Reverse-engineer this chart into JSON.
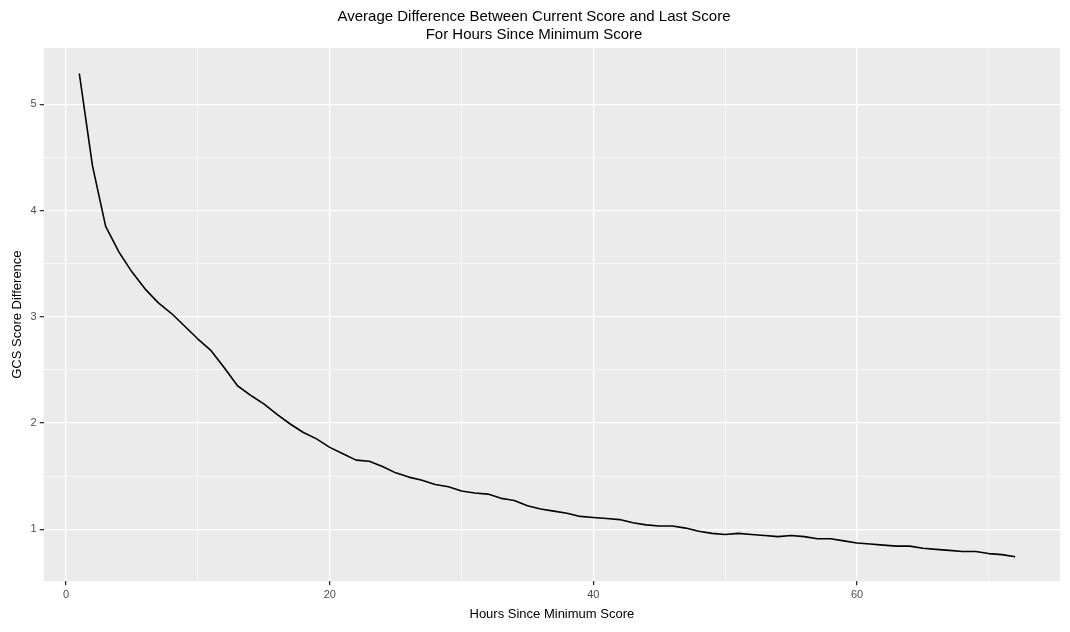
{
  "chart_data": {
    "type": "line",
    "title": "Average Difference Between Current Score and Last Score",
    "subtitle": "For Hours Since Minimum Score",
    "xlabel": "Hours Since Minimum Score",
    "ylabel": "GCS Score Difference",
    "x": [
      1,
      2,
      3,
      4,
      5,
      6,
      7,
      8,
      9,
      10,
      11,
      12,
      13,
      14,
      15,
      16,
      17,
      18,
      19,
      20,
      21,
      22,
      23,
      24,
      25,
      26,
      27,
      28,
      29,
      30,
      31,
      32,
      33,
      34,
      35,
      36,
      37,
      38,
      39,
      40,
      41,
      42,
      43,
      44,
      45,
      46,
      47,
      48,
      49,
      50,
      51,
      52,
      53,
      54,
      55,
      56,
      57,
      58,
      59,
      60,
      61,
      62,
      63,
      64,
      65,
      66,
      67,
      68,
      69,
      70,
      71,
      72
    ],
    "series": [
      {
        "color": "#000000",
        "values": [
          5.29,
          4.42,
          3.85,
          3.61,
          3.42,
          3.26,
          3.13,
          3.03,
          2.91,
          2.79,
          2.68,
          2.52,
          2.35,
          2.26,
          2.18,
          2.08,
          1.99,
          1.91,
          1.85,
          1.77,
          1.71,
          1.65,
          1.64,
          1.59,
          1.53,
          1.49,
          1.46,
          1.42,
          1.4,
          1.36,
          1.34,
          1.33,
          1.29,
          1.27,
          1.22,
          1.19,
          1.17,
          1.15,
          1.12,
          1.11,
          1.1,
          1.09,
          1.06,
          1.04,
          1.03,
          1.03,
          1.01,
          0.98,
          0.96,
          0.95,
          0.96,
          0.95,
          0.94,
          0.93,
          0.94,
          0.93,
          0.91,
          0.91,
          0.89,
          0.87,
          0.86,
          0.85,
          0.84,
          0.84,
          0.82,
          0.81,
          0.8,
          0.79,
          0.79,
          0.77,
          0.76,
          0.74
        ]
      }
    ],
    "xlim": [
      -1.7,
      75.4
    ],
    "ylim": [
      0.51,
      5.53
    ],
    "xticks": [
      0,
      {
        "value": 10,
        "label": null
      },
      20,
      {
        "value": 30,
        "label": null
      },
      40,
      {
        "value": 50,
        "label": null
      },
      60,
      {
        "value": 70,
        "label": null
      }
    ],
    "yticks": [
      1,
      {
        "value": 1.5,
        "label": null
      },
      2,
      {
        "value": 2.5,
        "label": null
      },
      3,
      {
        "value": 3.5,
        "label": null
      },
      4,
      {
        "value": 4.5,
        "label": null
      },
      5
    ],
    "grid": true,
    "marker": "none",
    "line_style": "solid"
  }
}
